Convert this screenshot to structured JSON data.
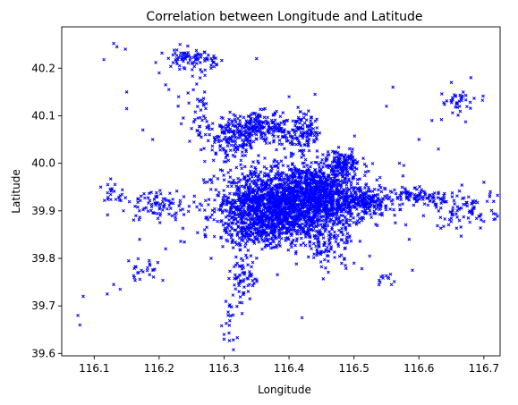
{
  "chart_data": {
    "type": "scatter",
    "title": "Correlation between Longitude and Latitude",
    "xlabel": "Longitude",
    "ylabel": "Latitude",
    "xlim": [
      116.05,
      116.725
    ],
    "ylim": [
      39.595,
      40.287
    ],
    "xticks": [
      "116.1",
      "116.2",
      "116.3",
      "116.4",
      "116.5",
      "116.6",
      "116.7"
    ],
    "yticks": [
      "39.6",
      "39.7",
      "39.8",
      "39.9",
      "40.0",
      "40.1",
      "40.2"
    ],
    "grid": false,
    "color": "#0000ff",
    "marker": "x",
    "clusters": [
      {
        "cx": 116.41,
        "cy": 39.92,
        "sx": 0.055,
        "sy": 0.04,
        "n": 1500
      },
      {
        "cx": 116.36,
        "cy": 39.91,
        "sx": 0.03,
        "sy": 0.035,
        "n": 450
      },
      {
        "cx": 116.45,
        "cy": 39.93,
        "sx": 0.035,
        "sy": 0.03,
        "n": 450
      },
      {
        "cx": 116.36,
        "cy": 39.86,
        "sx": 0.04,
        "sy": 0.015,
        "n": 220
      },
      {
        "cx": 116.35,
        "cy": 40.075,
        "sx": 0.035,
        "sy": 0.015,
        "n": 260
      },
      {
        "cx": 116.31,
        "cy": 40.04,
        "sx": 0.02,
        "sy": 0.02,
        "n": 110
      },
      {
        "cx": 116.42,
        "cy": 40.06,
        "sx": 0.015,
        "sy": 0.02,
        "n": 120
      },
      {
        "cx": 116.48,
        "cy": 40.0,
        "sx": 0.015,
        "sy": 0.012,
        "n": 130
      },
      {
        "cx": 116.25,
        "cy": 40.22,
        "sx": 0.02,
        "sy": 0.01,
        "n": 90
      },
      {
        "cx": 116.46,
        "cy": 39.82,
        "sx": 0.02,
        "sy": 0.02,
        "n": 80
      },
      {
        "cx": 116.52,
        "cy": 39.92,
        "sx": 0.02,
        "sy": 0.015,
        "n": 150
      },
      {
        "cx": 116.6,
        "cy": 39.93,
        "sx": 0.02,
        "sy": 0.01,
        "n": 90
      },
      {
        "cx": 116.67,
        "cy": 39.9,
        "sx": 0.025,
        "sy": 0.02,
        "n": 90
      },
      {
        "cx": 116.2,
        "cy": 39.91,
        "sx": 0.03,
        "sy": 0.015,
        "n": 90
      },
      {
        "cx": 116.33,
        "cy": 39.76,
        "sx": 0.01,
        "sy": 0.03,
        "n": 70
      },
      {
        "cx": 116.31,
        "cy": 39.67,
        "sx": 0.006,
        "sy": 0.025,
        "n": 18
      },
      {
        "cx": 116.175,
        "cy": 39.77,
        "sx": 0.012,
        "sy": 0.012,
        "n": 25
      },
      {
        "cx": 116.66,
        "cy": 40.13,
        "sx": 0.02,
        "sy": 0.015,
        "n": 40
      },
      {
        "cx": 116.55,
        "cy": 39.75,
        "sx": 0.008,
        "sy": 0.008,
        "n": 12
      },
      {
        "cx": 116.13,
        "cy": 39.94,
        "sx": 0.008,
        "sy": 0.01,
        "n": 20
      },
      {
        "cx": 116.26,
        "cy": 40.11,
        "sx": 0.01,
        "sy": 0.04,
        "n": 40
      }
    ],
    "points": [
      [
        116.075,
        39.68
      ],
      [
        116.078,
        39.66
      ],
      [
        116.083,
        39.72
      ],
      [
        116.115,
        40.218
      ],
      [
        116.13,
        40.252
      ],
      [
        116.135,
        40.245
      ],
      [
        116.148,
        40.24
      ],
      [
        116.15,
        40.15
      ],
      [
        116.15,
        40.115
      ],
      [
        116.175,
        40.07
      ],
      [
        116.19,
        40.05
      ],
      [
        116.2,
        40.19
      ],
      [
        116.12,
        39.725
      ],
      [
        116.13,
        39.745
      ],
      [
        116.14,
        39.735
      ],
      [
        116.145,
        39.9
      ],
      [
        116.35,
        40.22
      ],
      [
        116.56,
        40.16
      ],
      [
        116.55,
        40.12
      ],
      [
        116.6,
        40.05
      ],
      [
        116.63,
        40.03
      ],
      [
        116.59,
        39.775
      ],
      [
        116.42,
        39.675
      ],
      [
        116.54,
        39.97
      ],
      [
        116.57,
        40.0
      ],
      [
        116.71,
        39.94
      ],
      [
        116.7,
        39.96
      ],
      [
        116.705,
        39.92
      ],
      [
        116.215,
        40.155
      ],
      [
        116.21,
        40.165
      ],
      [
        116.23,
        40.14
      ],
      [
        116.27,
        40.15
      ],
      [
        116.28,
        40.2
      ],
      [
        116.4,
        40.14
      ],
      [
        116.43,
        40.11
      ],
      [
        116.44,
        40.145
      ],
      [
        116.62,
        40.09
      ],
      [
        116.65,
        40.17
      ],
      [
        116.68,
        40.18
      ],
      [
        116.585,
        39.84
      ],
      [
        116.5,
        39.79
      ],
      [
        116.3,
        39.63
      ],
      [
        116.3,
        39.64
      ],
      [
        116.28,
        39.8
      ],
      [
        116.27,
        39.86
      ],
      [
        116.21,
        39.82
      ],
      [
        116.17,
        39.84
      ],
      [
        116.11,
        39.95
      ]
    ]
  }
}
